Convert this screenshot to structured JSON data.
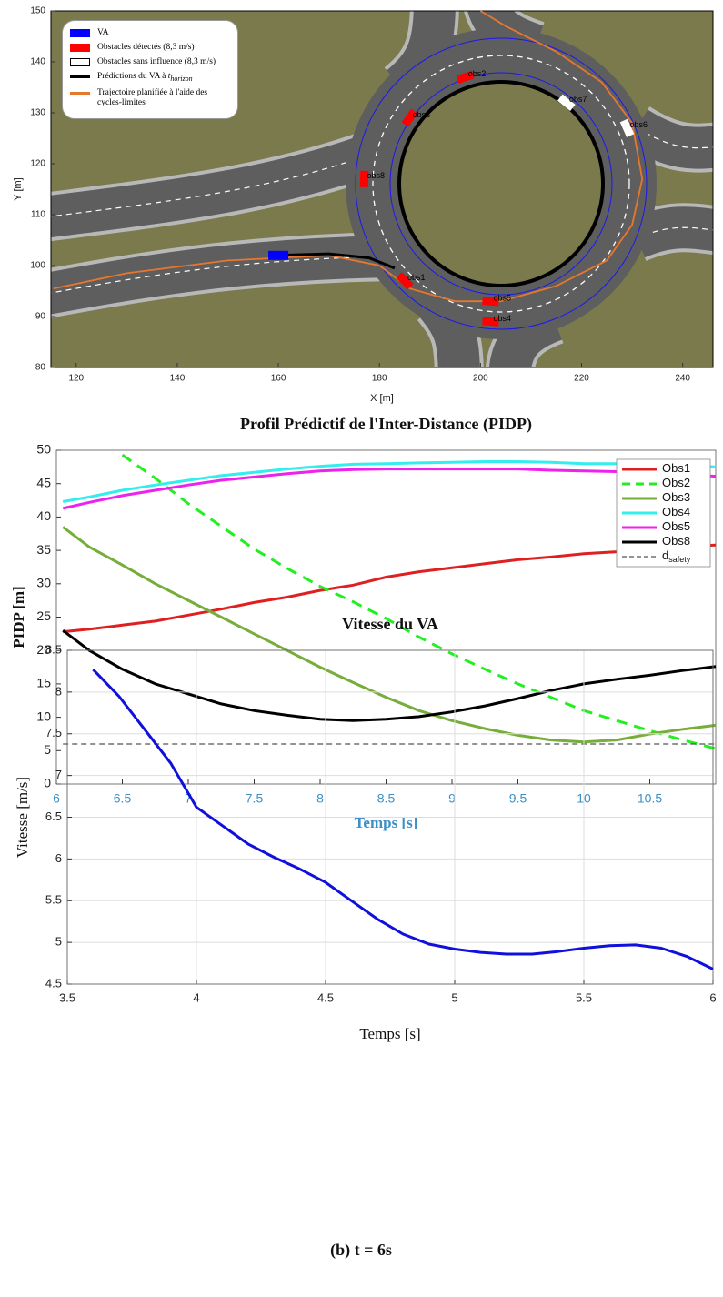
{
  "chart_data": [
    {
      "type": "map",
      "xlabel": "X [m]",
      "ylabel": "Y [m]",
      "xlim": [
        115,
        246
      ],
      "ylim": [
        80,
        150
      ],
      "xticks": [
        120,
        140,
        160,
        180,
        200,
        220,
        240
      ],
      "yticks": [
        80,
        90,
        100,
        110,
        120,
        130,
        140,
        150
      ],
      "legend": [
        {
          "text": "VA",
          "color": "#0000ff",
          "style": "fill"
        },
        {
          "text": "Obstacles détectés (8,3 m/s)",
          "color": "#ff0000",
          "style": "fill"
        },
        {
          "text": "Obstacles sans influence (8,3 m/s)",
          "color": "#000000",
          "style": "outline"
        },
        {
          "text": "Prédictions du VA à ",
          "var": "t",
          "sub": "horizon",
          "color": "#000000",
          "style": "line"
        },
        {
          "text": "Trajectoire planifiée à l'aide des cycles-limites",
          "color": "#e8772e",
          "style": "line"
        }
      ],
      "va": {
        "x": 160,
        "y": 102,
        "color": "#0000ff"
      },
      "prediction": {
        "color": "#000000",
        "x": [
          160,
          170,
          178,
          183
        ],
        "y": [
          102,
          102.3,
          101.5,
          99.5
        ]
      },
      "trajectory": {
        "color": "#e8772e",
        "x": [
          115.5,
          130,
          150,
          170,
          180,
          186,
          195,
          204,
          215,
          225,
          230,
          232,
          230,
          224,
          215,
          205,
          200
        ],
        "y": [
          95.5,
          98.5,
          101,
          102,
          100,
          95.5,
          93,
          93,
          96,
          101,
          108,
          117,
          128,
          136,
          142,
          147,
          150
        ]
      },
      "detected_color": "#ff0000",
      "undetected_color": "#ffffff",
      "obstacles": [
        {
          "label": "obs1",
          "x": 185,
          "y": 97,
          "detected": true
        },
        {
          "label": "obs2",
          "x": 197,
          "y": 137,
          "detected": true
        },
        {
          "label": "obs3",
          "x": 186,
          "y": 129,
          "detected": true
        },
        {
          "label": "obs4",
          "x": 202,
          "y": 89,
          "detected": true
        },
        {
          "label": "obs5",
          "x": 202,
          "y": 93,
          "detected": true
        },
        {
          "label": "obs6",
          "x": 229,
          "y": 127,
          "detected": false
        },
        {
          "label": "obs7",
          "x": 217,
          "y": 132,
          "detected": false
        },
        {
          "label": "obs8",
          "x": 177,
          "y": 117,
          "detected": true
        }
      ]
    },
    {
      "type": "line",
      "title": "Profil Prédictif de l'Inter-Distance (PIDP)",
      "xlabel": "Temps [s]",
      "ylabel": "PIDP [m]",
      "xlim": [
        6,
        11
      ],
      "ylim": [
        0,
        50
      ],
      "xticks": [
        6,
        6.5,
        7,
        7.5,
        8,
        8.5,
        9,
        9.5,
        10,
        10.5
      ],
      "yticks": [
        0,
        5,
        10,
        15,
        20,
        25,
        30,
        35,
        40,
        45,
        50
      ],
      "tick_color": "#3d8fc6",
      "grid": false,
      "legend": "upper right",
      "x": [
        6.05,
        6.25,
        6.5,
        6.75,
        7,
        7.25,
        7.5,
        7.75,
        8,
        8.25,
        8.5,
        8.75,
        9,
        9.25,
        9.5,
        9.75,
        10,
        10.25,
        10.5,
        10.75,
        11
      ],
      "series": [
        {
          "name": "Obs1",
          "color": "#e02020",
          "values": [
            22.8,
            23.2,
            23.8,
            24.4,
            25.3,
            26.2,
            27.2,
            28.0,
            29.0,
            29.8,
            31.0,
            31.8,
            32.4,
            33.0,
            33.6,
            34.0,
            34.5,
            34.8,
            35.3,
            35.6,
            35.8
          ]
        },
        {
          "name": "Obs2",
          "color": "#22ee22",
          "dash": true,
          "values": [
            null,
            null,
            49.3,
            45.8,
            42.0,
            38.6,
            35.2,
            32.3,
            29.6,
            27.3,
            24.8,
            22.0,
            19.5,
            17.2,
            15.0,
            13.0,
            11.0,
            9.5,
            8.0,
            6.6,
            5.3
          ]
        },
        {
          "name": "Obs3",
          "color": "#77ad3a",
          "values": [
            38.5,
            35.5,
            32.8,
            30.0,
            27.5,
            25.0,
            22.5,
            20.0,
            17.5,
            15.2,
            13.0,
            11.0,
            9.5,
            8.3,
            7.3,
            6.6,
            6.3,
            6.6,
            7.5,
            8.2,
            8.8
          ]
        },
        {
          "name": "Obs4",
          "color": "#33eeee",
          "values": [
            42.3,
            43.0,
            44.0,
            44.8,
            45.5,
            46.2,
            46.7,
            47.2,
            47.6,
            47.9,
            48.0,
            48.1,
            48.2,
            48.3,
            48.3,
            48.2,
            48.0,
            48.0,
            47.9,
            47.8,
            47.5
          ]
        },
        {
          "name": "Obs5",
          "color": "#ee22ee",
          "values": [
            41.3,
            42.2,
            43.2,
            44.0,
            44.8,
            45.5,
            46.0,
            46.5,
            46.9,
            47.1,
            47.2,
            47.2,
            47.2,
            47.2,
            47.2,
            47.0,
            46.9,
            46.8,
            46.6,
            46.4,
            46.1
          ]
        },
        {
          "name": "Obs8",
          "color": "#000000",
          "values": [
            23.0,
            20.0,
            17.2,
            15.0,
            13.5,
            12.0,
            11.0,
            10.3,
            9.7,
            9.5,
            9.7,
            10.1,
            10.8,
            11.7,
            12.8,
            14.0,
            15.0,
            15.7,
            16.3,
            17.0,
            17.6
          ]
        },
        {
          "name": "d",
          "name_sub": "safety",
          "color": "#555555",
          "dash": true,
          "thin": true,
          "values": [
            6,
            6,
            6,
            6,
            6,
            6,
            6,
            6,
            6,
            6,
            6,
            6,
            6,
            6,
            6,
            6,
            6,
            6,
            6,
            6,
            6
          ]
        }
      ]
    },
    {
      "type": "line",
      "title": "Vitesse du VA",
      "xlabel": "Temps [s]",
      "ylabel": "Vitesse [m/s]",
      "xlim": [
        3.5,
        6
      ],
      "ylim": [
        4.5,
        8.5
      ],
      "xticks": [
        3.5,
        4,
        4.5,
        5,
        5.5,
        6
      ],
      "yticks": [
        4.5,
        5,
        5.5,
        6,
        6.5,
        7,
        7.5,
        8,
        8.5
      ],
      "grid": true,
      "x": [
        3.6,
        3.7,
        3.8,
        3.9,
        4.0,
        4.1,
        4.2,
        4.3,
        4.4,
        4.5,
        4.6,
        4.7,
        4.8,
        4.9,
        5.0,
        5.1,
        5.2,
        5.3,
        5.4,
        5.5,
        5.6,
        5.7,
        5.8,
        5.9,
        6.0
      ],
      "series": [
        {
          "color": "#1010dd",
          "values": [
            8.27,
            7.95,
            7.55,
            7.15,
            6.62,
            6.4,
            6.18,
            6.02,
            5.88,
            5.72,
            5.5,
            5.28,
            5.1,
            4.98,
            4.92,
            4.88,
            4.86,
            4.86,
            4.89,
            4.93,
            4.96,
            4.97,
            4.93,
            4.83,
            4.68
          ]
        }
      ]
    }
  ],
  "caption": "(b) t = 6s"
}
